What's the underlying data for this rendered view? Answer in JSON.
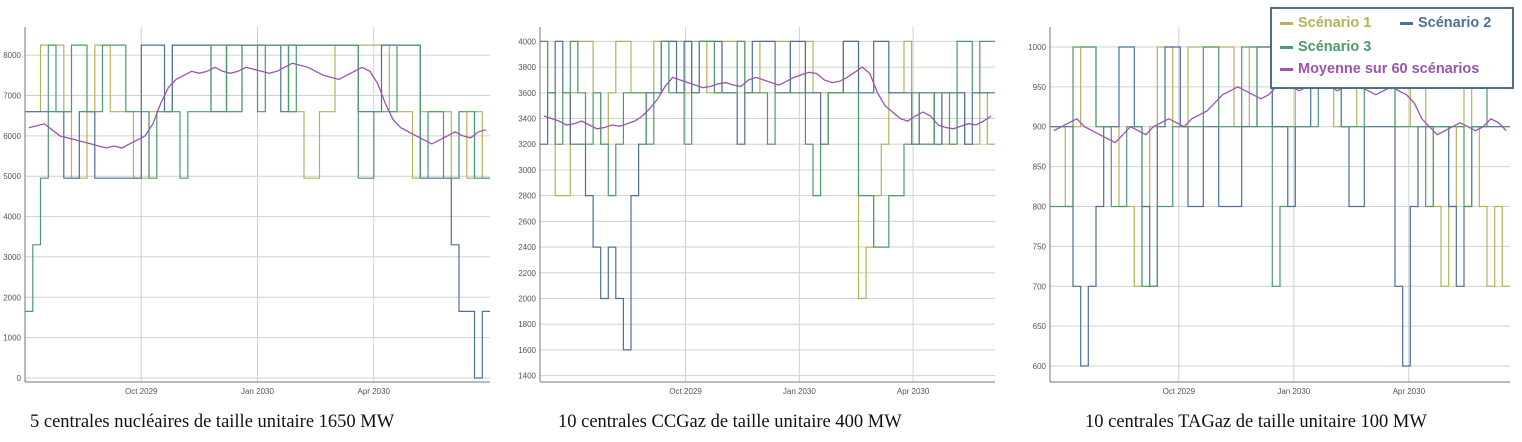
{
  "colors": {
    "scenario1": "#b5b35a",
    "scenario2": "#4f6f9b",
    "scenario3": "#4e9a6e",
    "moyenne": "#9a55b0",
    "grid": "#d0d0d0",
    "axis": "#777777",
    "tick_text": "#555555"
  },
  "legend": {
    "items": [
      {
        "label": "Scénario 1",
        "color": "#b5b35a"
      },
      {
        "label": "Scénario 2",
        "color": "#4f6f9b"
      },
      {
        "label": "Scénario 3",
        "color": "#4e9a6e"
      },
      {
        "label": "Moyenne sur 60 scénarios",
        "color": "#9a55b0"
      }
    ]
  },
  "chart_data": [
    {
      "type": "line",
      "caption": "5 centrales nucléaires de taille unitaire 1650 MW",
      "x_ticks": [
        "Oct 2029",
        "Jan 2030",
        "Apr 2030"
      ],
      "y_ticks": [
        0,
        1000,
        2000,
        3000,
        4000,
        5000,
        6000,
        7000,
        8000
      ],
      "ylim": [
        -100,
        8500
      ],
      "grid": true,
      "step_levels": [
        0,
        1650,
        3300,
        4950,
        6600,
        8250
      ],
      "series": [
        {
          "name": "Scénario 1",
          "values": [
            6600,
            6600,
            8250,
            8250,
            8250,
            6600,
            4950,
            4950,
            6600,
            8250,
            8250,
            6600,
            6600,
            6600,
            4950,
            4950,
            6600,
            6600,
            6600,
            8250,
            8250,
            8250,
            8250,
            8250,
            8250,
            8250,
            6600,
            6600,
            8250,
            8250,
            8250,
            8250,
            8250,
            8250,
            6600,
            6600,
            4950,
            4950,
            6600,
            6600,
            8250,
            8250,
            8250,
            8250,
            8250,
            8250,
            8250,
            6600,
            6600,
            6600,
            4950,
            6600,
            6600,
            6600,
            6600,
            4950,
            6600,
            4950,
            6600,
            4950
          ]
        },
        {
          "name": "Scénario 2",
          "values": [
            6600,
            6600,
            6600,
            6600,
            6600,
            4950,
            4950,
            6600,
            6600,
            4950,
            4950,
            4950,
            4950,
            4950,
            4950,
            8250,
            8250,
            8250,
            6600,
            8250,
            8250,
            8250,
            8250,
            8250,
            6600,
            6600,
            8250,
            8250,
            8250,
            8250,
            8250,
            8250,
            8250,
            6600,
            8250,
            8250,
            8250,
            8250,
            8250,
            8250,
            8250,
            8250,
            8250,
            6600,
            6600,
            6600,
            8250,
            8250,
            8250,
            8250,
            8250,
            4950,
            4950,
            4950,
            4950,
            3300,
            1650,
            1650,
            0,
            1650
          ]
        },
        {
          "name": "Scénario 3",
          "values": [
            1650,
            3300,
            4950,
            8250,
            6600,
            6600,
            8250,
            8250,
            6600,
            6600,
            8250,
            8250,
            8250,
            6600,
            6600,
            6600,
            4950,
            6600,
            6600,
            6600,
            4950,
            6600,
            6600,
            6600,
            8250,
            8250,
            6600,
            6600,
            8250,
            8250,
            6600,
            8250,
            8250,
            8250,
            6600,
            8250,
            8250,
            8250,
            8250,
            8250,
            8250,
            8250,
            8250,
            4950,
            4950,
            6600,
            6600,
            6600,
            8250,
            8250,
            8250,
            4950,
            6600,
            6600,
            4950,
            4950,
            6600,
            6600,
            4950,
            4950
          ]
        },
        {
          "name": "Moyenne sur 60 scénarios",
          "values": [
            6200,
            6250,
            6300,
            6150,
            6000,
            5950,
            5900,
            5850,
            5800,
            5750,
            5700,
            5750,
            5700,
            5800,
            5900,
            6000,
            6300,
            6800,
            7200,
            7400,
            7500,
            7600,
            7550,
            7600,
            7700,
            7600,
            7550,
            7600,
            7700,
            7650,
            7600,
            7550,
            7600,
            7700,
            7800,
            7750,
            7700,
            7600,
            7500,
            7450,
            7400,
            7500,
            7600,
            7700,
            7600,
            7300,
            6800,
            6400,
            6200,
            6100,
            6000,
            5900,
            5800,
            5900,
            6000,
            6100,
            6000,
            5950,
            6100,
            6150
          ]
        }
      ]
    },
    {
      "type": "line",
      "caption": "10 centrales CCGaz de taille unitaire 400 MW",
      "x_ticks": [
        "Oct 2029",
        "Jan 2030",
        "Apr 2030"
      ],
      "y_ticks": [
        1400,
        1600,
        1800,
        2000,
        2200,
        2400,
        2600,
        2800,
        3000,
        3200,
        3400,
        3600,
        3800,
        4000
      ],
      "ylim": [
        1350,
        4050
      ],
      "grid": true,
      "step_levels": [
        1600,
        2000,
        2400,
        2800,
        3200,
        3600,
        4000
      ],
      "series": [
        {
          "name": "Scénario 1",
          "values": [
            4000,
            3600,
            2800,
            2800,
            3600,
            4000,
            4000,
            3600,
            3200,
            3600,
            4000,
            4000,
            3600,
            3600,
            3600,
            4000,
            4000,
            4000,
            4000,
            3600,
            4000,
            4000,
            3600,
            3600,
            4000,
            4000,
            4000,
            3600,
            3600,
            4000,
            4000,
            4000,
            4000,
            3600,
            3600,
            4000,
            3600,
            3600,
            3600,
            3600,
            4000,
            4000,
            2000,
            2400,
            2800,
            3200,
            3600,
            3600,
            4000,
            3200,
            3200,
            3200,
            3600,
            3200,
            3200,
            3600,
            3200,
            3200,
            3600,
            3200
          ]
        },
        {
          "name": "Scénario 2",
          "values": [
            3200,
            3600,
            4000,
            3600,
            3200,
            3200,
            2800,
            2400,
            2000,
            2400,
            2000,
            1600,
            2800,
            3200,
            3600,
            3600,
            4000,
            4000,
            3600,
            4000,
            3600,
            4000,
            4000,
            4000,
            3600,
            3600,
            3200,
            3600,
            4000,
            4000,
            4000,
            3600,
            3600,
            4000,
            4000,
            3600,
            3600,
            3200,
            3600,
            3600,
            4000,
            4000,
            3600,
            3600,
            4000,
            4000,
            3600,
            3600,
            3600,
            3200,
            3600,
            3600,
            3200,
            3600,
            3600,
            3600,
            3200,
            3600,
            3600,
            3600
          ]
        },
        {
          "name": "Scénario 3",
          "values": [
            4000,
            3600,
            3200,
            3600,
            4000,
            3600,
            3200,
            3600,
            3200,
            2800,
            3200,
            3600,
            3600,
            3600,
            3200,
            3600,
            4000,
            3600,
            3600,
            3200,
            3600,
            4000,
            4000,
            3600,
            3600,
            3600,
            4000,
            3600,
            3600,
            3600,
            3200,
            3600,
            3600,
            3600,
            3600,
            3200,
            2800,
            3200,
            3600,
            3600,
            3600,
            3600,
            2800,
            2800,
            2400,
            2400,
            2800,
            2800,
            3200,
            3600,
            3200,
            3200,
            3600,
            3600,
            3200,
            4000,
            4000,
            3600,
            4000,
            4000
          ]
        },
        {
          "name": "Moyenne sur 60 scénarios",
          "values": [
            3420,
            3400,
            3380,
            3350,
            3360,
            3380,
            3350,
            3320,
            3330,
            3350,
            3340,
            3360,
            3380,
            3420,
            3480,
            3550,
            3650,
            3720,
            3700,
            3680,
            3660,
            3640,
            3650,
            3670,
            3680,
            3660,
            3650,
            3700,
            3720,
            3700,
            3680,
            3660,
            3690,
            3720,
            3740,
            3760,
            3750,
            3700,
            3680,
            3690,
            3720,
            3760,
            3800,
            3750,
            3600,
            3500,
            3450,
            3400,
            3380,
            3420,
            3450,
            3420,
            3350,
            3330,
            3320,
            3340,
            3360,
            3350,
            3380,
            3420
          ]
        }
      ]
    },
    {
      "type": "line",
      "caption": "10 centrales TAGaz de taille unitaire 100 MW",
      "x_ticks": [
        "Oct 2029",
        "Jan 2030",
        "Apr 2030"
      ],
      "y_ticks": [
        600,
        650,
        700,
        750,
        800,
        850,
        900,
        950,
        1000
      ],
      "ylim": [
        580,
        1015
      ],
      "grid": true,
      "step_levels": [
        600,
        700,
        800,
        900,
        1000
      ],
      "series": [
        {
          "name": "Scénario 1",
          "values": [
            900,
            900,
            800,
            900,
            1000,
            1000,
            900,
            900,
            900,
            800,
            800,
            700,
            800,
            900,
            1000,
            1000,
            900,
            900,
            1000,
            1000,
            1000,
            1000,
            1000,
            1000,
            900,
            900,
            1000,
            1000,
            1000,
            900,
            900,
            900,
            1000,
            1000,
            1000,
            1000,
            1000,
            900,
            900,
            900,
            1000,
            1000,
            1000,
            1000,
            1000,
            900,
            900,
            1000,
            1000,
            900,
            800,
            700,
            800,
            900,
            1000,
            900,
            800,
            700,
            800,
            700
          ]
        },
        {
          "name": "Scénario 2",
          "values": [
            900,
            900,
            900,
            700,
            600,
            700,
            800,
            900,
            900,
            1000,
            1000,
            900,
            800,
            700,
            900,
            1000,
            1000,
            900,
            800,
            800,
            900,
            900,
            800,
            800,
            800,
            900,
            900,
            1000,
            1000,
            900,
            900,
            800,
            900,
            900,
            1000,
            1000,
            1000,
            1000,
            900,
            800,
            800,
            900,
            900,
            900,
            900,
            700,
            600,
            800,
            900,
            900,
            900,
            900,
            800,
            700,
            800,
            900,
            900,
            900,
            900,
            900
          ]
        },
        {
          "name": "Scénario 3",
          "values": [
            800,
            800,
            800,
            1000,
            1000,
            1000,
            900,
            900,
            800,
            800,
            900,
            900,
            700,
            700,
            800,
            800,
            900,
            900,
            900,
            900,
            1000,
            1000,
            900,
            900,
            900,
            1000,
            1000,
            900,
            900,
            700,
            800,
            900,
            900,
            900,
            900,
            1000,
            1000,
            1000,
            900,
            900,
            900,
            1000,
            1000,
            1000,
            1000,
            900,
            900,
            900,
            900,
            800,
            900,
            900,
            900,
            900,
            800,
            900,
            900,
            1000,
            1000,
            1000
          ]
        },
        {
          "name": "Moyenne sur 60 scénarios",
          "values": [
            895,
            900,
            905,
            910,
            900,
            895,
            890,
            885,
            880,
            890,
            900,
            895,
            890,
            900,
            905,
            910,
            905,
            900,
            910,
            915,
            920,
            930,
            940,
            945,
            950,
            945,
            940,
            935,
            940,
            950,
            955,
            950,
            945,
            950,
            960,
            955,
            950,
            945,
            950,
            955,
            950,
            945,
            940,
            945,
            950,
            945,
            940,
            930,
            910,
            900,
            890,
            895,
            900,
            905,
            900,
            895,
            900,
            910,
            905,
            895
          ]
        }
      ]
    }
  ]
}
